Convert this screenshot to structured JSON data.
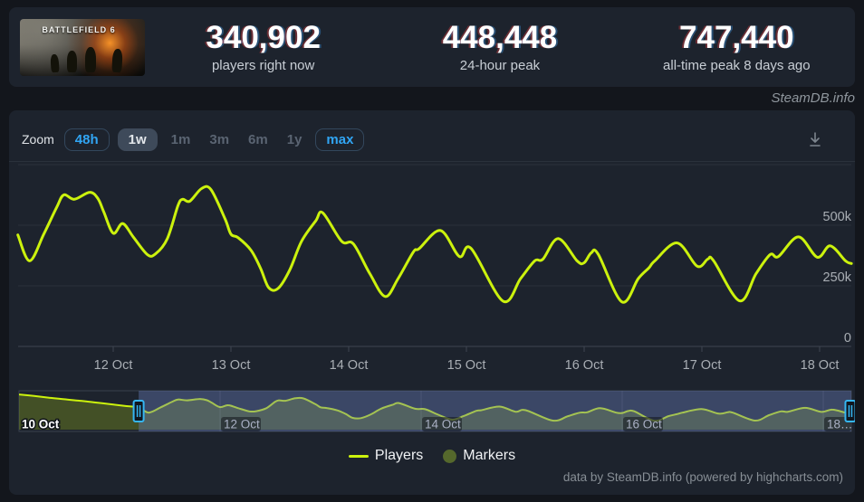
{
  "header": {
    "game_title": "BATTLEFIELD 6",
    "stats": [
      {
        "value": "340,902",
        "label": "players right now"
      },
      {
        "value": "448,448",
        "label": "24-hour peak"
      },
      {
        "value": "747,440",
        "label": "all-time peak 8 days ago"
      }
    ]
  },
  "watermark": "SteamDB.info",
  "toolbar": {
    "zoom_label": "Zoom",
    "buttons": [
      {
        "label": "48h",
        "state": "outline"
      },
      {
        "label": "1w",
        "state": "selected"
      },
      {
        "label": "1m",
        "state": "disabled"
      },
      {
        "label": "3m",
        "state": "disabled"
      },
      {
        "label": "6m",
        "state": "disabled"
      },
      {
        "label": "1y",
        "state": "disabled"
      },
      {
        "label": "max",
        "state": "outline"
      }
    ]
  },
  "chart_data": {
    "type": "line",
    "series_name": "Players",
    "line_color": "#ccf20d",
    "units": {
      "x": "day of October",
      "y": "players (thousands)"
    },
    "ylim": [
      0,
      750
    ],
    "x_range_days": [
      11.19,
      18.27
    ],
    "yticks": [
      {
        "label": "500k",
        "value": 500
      },
      {
        "label": "250k",
        "value": 250
      },
      {
        "label": "0",
        "value": 0
      }
    ],
    "ygrid_values": [
      750,
      500,
      250,
      0
    ],
    "xticks": [
      {
        "label": "12 Oct",
        "day": 12
      },
      {
        "label": "13 Oct",
        "day": 13
      },
      {
        "label": "14 Oct",
        "day": 14
      },
      {
        "label": "15 Oct",
        "day": 15
      },
      {
        "label": "16 Oct",
        "day": 16
      },
      {
        "label": "17 Oct",
        "day": 17
      },
      {
        "label": "18 Oct",
        "day": 18
      }
    ],
    "points": [
      [
        11.19,
        460
      ],
      [
        11.29,
        353
      ],
      [
        11.41,
        463
      ],
      [
        11.52,
        574
      ],
      [
        11.58,
        625
      ],
      [
        11.67,
        607
      ],
      [
        11.8,
        636
      ],
      [
        11.87,
        610
      ],
      [
        11.92,
        555
      ],
      [
        12.0,
        467
      ],
      [
        12.08,
        507
      ],
      [
        12.17,
        452
      ],
      [
        12.29,
        379
      ],
      [
        12.36,
        382
      ],
      [
        12.46,
        445
      ],
      [
        12.55,
        581
      ],
      [
        12.59,
        607
      ],
      [
        12.65,
        599
      ],
      [
        12.75,
        651
      ],
      [
        12.83,
        647
      ],
      [
        12.95,
        526
      ],
      [
        13.0,
        463
      ],
      [
        13.06,
        449
      ],
      [
        13.17,
        397
      ],
      [
        13.25,
        324
      ],
      [
        13.32,
        243
      ],
      [
        13.4,
        239
      ],
      [
        13.5,
        316
      ],
      [
        13.6,
        434
      ],
      [
        13.72,
        518
      ],
      [
        13.78,
        551
      ],
      [
        13.94,
        434
      ],
      [
        14.04,
        423
      ],
      [
        14.18,
        300
      ],
      [
        14.31,
        206
      ],
      [
        14.42,
        280
      ],
      [
        14.55,
        390
      ],
      [
        14.6,
        404
      ],
      [
        14.78,
        478
      ],
      [
        14.94,
        371
      ],
      [
        15.04,
        404
      ],
      [
        15.31,
        187
      ],
      [
        15.46,
        280
      ],
      [
        15.58,
        353
      ],
      [
        15.65,
        360
      ],
      [
        15.78,
        445
      ],
      [
        15.94,
        353
      ],
      [
        16.0,
        345
      ],
      [
        16.06,
        386
      ],
      [
        16.12,
        380
      ],
      [
        16.32,
        184
      ],
      [
        16.46,
        280
      ],
      [
        16.55,
        324
      ],
      [
        16.6,
        353
      ],
      [
        16.79,
        427
      ],
      [
        16.96,
        331
      ],
      [
        17.05,
        360
      ],
      [
        17.1,
        353
      ],
      [
        17.32,
        188
      ],
      [
        17.46,
        300
      ],
      [
        17.58,
        379
      ],
      [
        17.65,
        371
      ],
      [
        17.82,
        452
      ],
      [
        17.98,
        368
      ],
      [
        18.09,
        415
      ],
      [
        18.22,
        353
      ],
      [
        18.27,
        342
      ]
    ]
  },
  "navigator": {
    "x_range_days": [
      10.0,
      18.27
    ],
    "selection_days": [
      11.19,
      18.27
    ],
    "prefix_points": [
      [
        10.0,
        730
      ],
      [
        10.15,
        697
      ],
      [
        10.3,
        662
      ],
      [
        10.45,
        630
      ],
      [
        10.6,
        600
      ],
      [
        10.75,
        565
      ],
      [
        10.9,
        530
      ],
      [
        11.05,
        492
      ]
    ],
    "labels": [
      {
        "label": "10 Oct",
        "day": 10,
        "style": "outside"
      },
      {
        "label": "12 Oct",
        "day": 12,
        "style": "inside"
      },
      {
        "label": "14 Oct",
        "day": 14,
        "style": "inside"
      },
      {
        "label": "16 Oct",
        "day": 16,
        "style": "inside"
      },
      {
        "label": "18…",
        "day": 18,
        "style": "inside"
      }
    ],
    "grid_days": [
      12,
      14,
      16,
      18
    ],
    "mask_color": "rgba(104,126,188,0.40)",
    "area_color": "rgba(204,242,13,0.22)"
  },
  "legend": [
    {
      "label": "Players",
      "swatch": "line",
      "color": "#ccf20d"
    },
    {
      "label": "Markers",
      "swatch": "circle",
      "color": "#55682c"
    }
  ],
  "credits": "data by SteamDB.info (powered by highcharts.com)"
}
